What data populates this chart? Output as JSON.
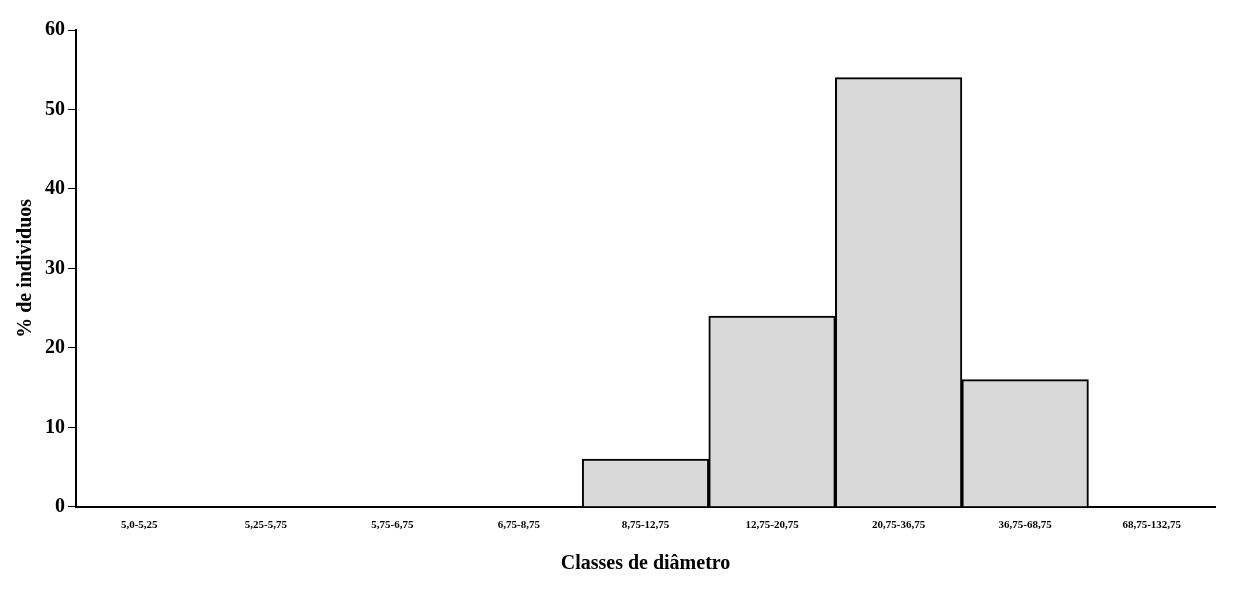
{
  "chart_data": {
    "type": "bar",
    "xlabel": "Classes de diâmetro",
    "ylabel": "% de individuos",
    "categories": [
      "5,0-5,25",
      "5,25-5,75",
      "5,75-6,75",
      "6,75-8,75",
      "8,75-12,75",
      "12,75-20,75",
      "20,75-36,75",
      "36,75-68,75",
      "68,75-132,75"
    ],
    "values": [
      0,
      0,
      0,
      0,
      6,
      24,
      54,
      16,
      0
    ],
    "color": "#d9d9d9",
    "ylim": [
      0,
      60
    ],
    "yticks": [
      0,
      10,
      20,
      30,
      40,
      50,
      60
    ],
    "grid": false,
    "legend": false
  }
}
